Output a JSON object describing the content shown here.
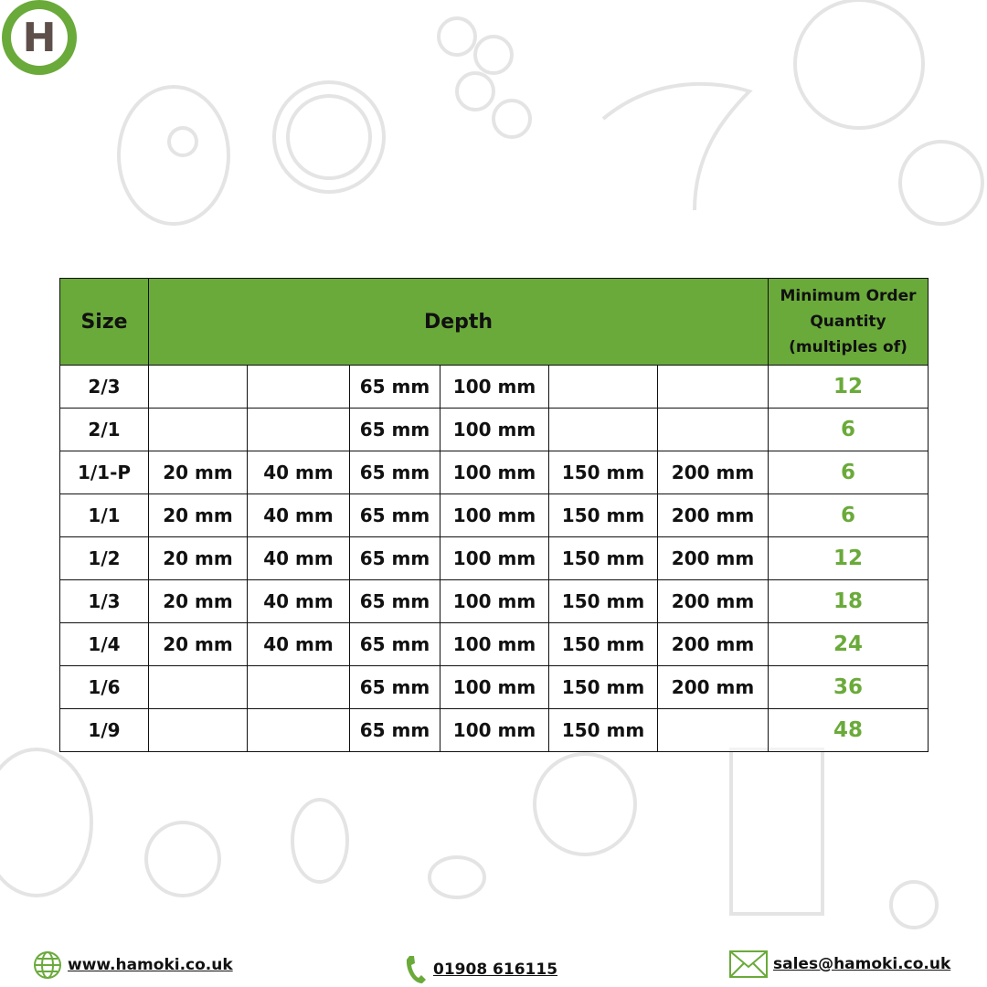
{
  "brand": {
    "logo_letter": "H",
    "accent": "#6aaa3a"
  },
  "table": {
    "headers": {
      "size": "Size",
      "depth": "Depth",
      "moq": "Minimum Order Quantity (multiples of)"
    },
    "rows": [
      {
        "size": "2/3",
        "depths": [
          "",
          "",
          "65 mm",
          "100 mm",
          "",
          ""
        ],
        "moq": "12"
      },
      {
        "size": "2/1",
        "depths": [
          "",
          "",
          "65 mm",
          "100 mm",
          "",
          ""
        ],
        "moq": "6"
      },
      {
        "size": "1/1-P",
        "depths": [
          "20 mm",
          "40 mm",
          "65 mm",
          "100 mm",
          "150 mm",
          "200 mm"
        ],
        "moq": "6"
      },
      {
        "size": "1/1",
        "depths": [
          "20 mm",
          "40 mm",
          "65 mm",
          "100 mm",
          "150 mm",
          "200 mm"
        ],
        "moq": "6"
      },
      {
        "size": "1/2",
        "depths": [
          "20 mm",
          "40 mm",
          "65 mm",
          "100 mm",
          "150 mm",
          "200 mm"
        ],
        "moq": "12"
      },
      {
        "size": "1/3",
        "depths": [
          "20 mm",
          "40 mm",
          "65 mm",
          "100 mm",
          "150 mm",
          "200 mm"
        ],
        "moq": "18"
      },
      {
        "size": "1/4",
        "depths": [
          "20 mm",
          "40 mm",
          "65 mm",
          "100 mm",
          "150 mm",
          "200 mm"
        ],
        "moq": "24"
      },
      {
        "size": "1/6",
        "depths": [
          "",
          "",
          "65 mm",
          "100 mm",
          "150 mm",
          "200 mm"
        ],
        "moq": "36"
      },
      {
        "size": "1/9",
        "depths": [
          "",
          "",
          "65 mm",
          "100 mm",
          "150 mm",
          ""
        ],
        "moq": "48"
      }
    ]
  },
  "footer": {
    "website": "www.hamoki.co.uk",
    "phone": "01908 616115",
    "email": "sales@hamoki.co.uk",
    "icons": [
      "globe-icon",
      "phone-icon",
      "envelope-icon"
    ]
  }
}
